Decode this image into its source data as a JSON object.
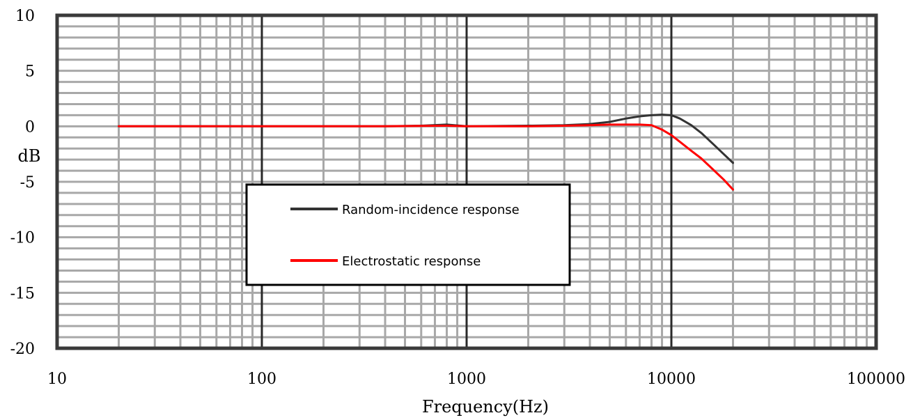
{
  "chart_data": {
    "type": "line",
    "xlabel": "Frequency(Hz)",
    "ylabel": "dB",
    "xscale": "log",
    "xlim": [
      10,
      100000
    ],
    "ylim": [
      -20,
      10
    ],
    "x_ticks": [
      "10",
      "100",
      "1000",
      "10000",
      "100000"
    ],
    "y_ticks": [
      "10",
      "5",
      "0",
      "-5",
      "-10",
      "-15",
      "-20"
    ],
    "grid": true,
    "legend": {
      "placement": "center-left",
      "entries": [
        "Random-incidence response",
        "Electrostatic response"
      ]
    },
    "series": [
      {
        "name": "Random-incidence response",
        "color": "#333333",
        "points": [
          [
            20,
            0
          ],
          [
            100,
            0
          ],
          [
            400,
            0
          ],
          [
            600,
            0.05
          ],
          [
            800,
            0.15
          ],
          [
            1000,
            0
          ],
          [
            2000,
            0.05
          ],
          [
            3000,
            0.1
          ],
          [
            4000,
            0.2
          ],
          [
            5000,
            0.4
          ],
          [
            6000,
            0.7
          ],
          [
            7000,
            0.9
          ],
          [
            8000,
            1.0
          ],
          [
            9000,
            1.05
          ],
          [
            10000,
            1.0
          ],
          [
            11000,
            0.7
          ],
          [
            12500,
            0.1
          ],
          [
            14000,
            -0.6
          ],
          [
            16000,
            -1.6
          ],
          [
            18000,
            -2.5
          ],
          [
            20000,
            -3.3
          ]
        ]
      },
      {
        "name": "Electrostatic response",
        "color": "#ff0000",
        "points": [
          [
            20,
            0
          ],
          [
            100,
            0
          ],
          [
            400,
            0
          ],
          [
            800,
            0.05
          ],
          [
            1000,
            0
          ],
          [
            2000,
            0
          ],
          [
            3000,
            0.05
          ],
          [
            4000,
            0.1
          ],
          [
            5000,
            0.15
          ],
          [
            6000,
            0.15
          ],
          [
            7000,
            0.15
          ],
          [
            8000,
            0.1
          ],
          [
            9000,
            -0.3
          ],
          [
            10000,
            -0.8
          ],
          [
            11000,
            -1.4
          ],
          [
            12500,
            -2.2
          ],
          [
            14000,
            -2.9
          ],
          [
            16000,
            -3.9
          ],
          [
            18000,
            -4.8
          ],
          [
            20000,
            -5.7
          ]
        ]
      }
    ]
  }
}
